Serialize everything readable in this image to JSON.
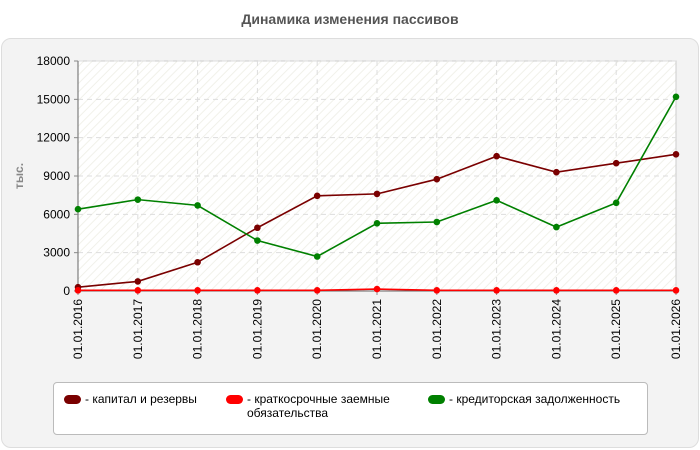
{
  "chart_data": {
    "type": "line",
    "title": "Динамика изменения пассивов",
    "ylabel": "тыс.",
    "xlabel": "",
    "categories": [
      "01.01.2016",
      "01.01.2017",
      "01.01.2018",
      "01.01.2019",
      "01.01.2020",
      "01.01.2021",
      "01.01.2022",
      "01.01.2023",
      "01.01.2024",
      "01.01.2025",
      "01.01.2026"
    ],
    "yticks": [
      0,
      3000,
      6000,
      9000,
      12000,
      15000,
      18000
    ],
    "ylim": [
      0,
      18000
    ],
    "grid": true,
    "legend_position": "bottom",
    "series": [
      {
        "name": "- капитал и резервы",
        "color": "#7a0000",
        "values": [
          300,
          750,
          2250,
          4950,
          7450,
          7600,
          8750,
          10550,
          9300,
          10000,
          10700
        ]
      },
      {
        "name": "- краткосрочные заемные обязательства",
        "color": "#ff0000",
        "values": [
          50,
          50,
          50,
          50,
          50,
          150,
          50,
          50,
          50,
          50,
          50
        ]
      },
      {
        "name": "- кредиторская задолженность",
        "color": "#008000",
        "values": [
          6400,
          7150,
          6700,
          3950,
          2700,
          5300,
          5400,
          7100,
          5000,
          6900,
          15200
        ]
      }
    ]
  }
}
